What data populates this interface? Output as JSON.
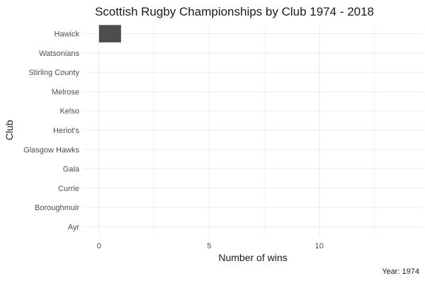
{
  "chart_data": {
    "type": "bar",
    "orientation": "horizontal",
    "title": "Scottish Rugby Championships by Club 1974 - 2018",
    "xlabel": "Number of wins",
    "ylabel": "Club",
    "caption": "Year: 1974",
    "categories": [
      "Hawick",
      "Watsonians",
      "Stirling County",
      "Melrose",
      "Kelso",
      "Heriot's",
      "Glasgow Hawks",
      "Gala",
      "Currie",
      "Boroughmuir",
      "Ayr"
    ],
    "values": [
      1,
      0,
      0,
      0,
      0,
      0,
      0,
      0,
      0,
      0,
      0
    ],
    "xlim": [
      -0.7,
      14.7
    ],
    "xticks": [
      0,
      5,
      10
    ],
    "minor_xticks": [
      2.5,
      7.5,
      12.5
    ],
    "grid": true,
    "bar_color": "#4d4d4d"
  }
}
